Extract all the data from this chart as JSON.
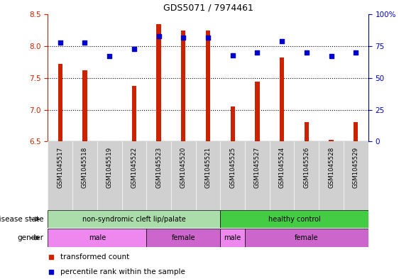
{
  "title": "GDS5071 / 7974461",
  "samples": [
    "GSM1045517",
    "GSM1045518",
    "GSM1045519",
    "GSM1045522",
    "GSM1045523",
    "GSM1045520",
    "GSM1045521",
    "GSM1045525",
    "GSM1045527",
    "GSM1045524",
    "GSM1045526",
    "GSM1045528",
    "GSM1045529"
  ],
  "bar_values": [
    7.72,
    7.62,
    6.5,
    7.38,
    8.35,
    8.25,
    8.25,
    7.05,
    7.44,
    7.82,
    6.8,
    6.52,
    6.8
  ],
  "percentile_values": [
    78,
    78,
    67,
    73,
    83,
    82,
    82,
    68,
    70,
    79,
    70,
    67,
    70
  ],
  "bar_bottom": 6.5,
  "ylim_left": [
    6.5,
    8.5
  ],
  "ylim_right": [
    0,
    100
  ],
  "yticks_left": [
    6.5,
    7.0,
    7.5,
    8.0,
    8.5
  ],
  "yticks_right": [
    0,
    25,
    50,
    75,
    100
  ],
  "bar_color": "#cc2200",
  "dot_color": "#0000cc",
  "bg_color": "#ffffff",
  "tick_bg_color": "#d0d0d0",
  "ds_spans": [
    {
      "start": 0,
      "end": 7,
      "label": "non-syndromic cleft lip/palate",
      "color": "#aaddaa"
    },
    {
      "start": 7,
      "end": 13,
      "label": "healthy control",
      "color": "#44cc44"
    }
  ],
  "gd_spans": [
    {
      "start": 0,
      "end": 4,
      "label": "male",
      "color": "#ee88ee"
    },
    {
      "start": 4,
      "end": 7,
      "label": "female",
      "color": "#cc66cc"
    },
    {
      "start": 7,
      "end": 8,
      "label": "male",
      "color": "#ee88ee"
    },
    {
      "start": 8,
      "end": 13,
      "label": "female",
      "color": "#cc66cc"
    }
  ],
  "legend_items": [
    {
      "label": "transformed count",
      "color": "#cc2200"
    },
    {
      "label": "percentile rank within the sample",
      "color": "#0000cc"
    }
  ],
  "tick_label_color_left": "#cc2200",
  "tick_label_color_right": "#0000cc",
  "grid_yticks": [
    7.0,
    7.5,
    8.0
  ],
  "bar_width": 0.18
}
